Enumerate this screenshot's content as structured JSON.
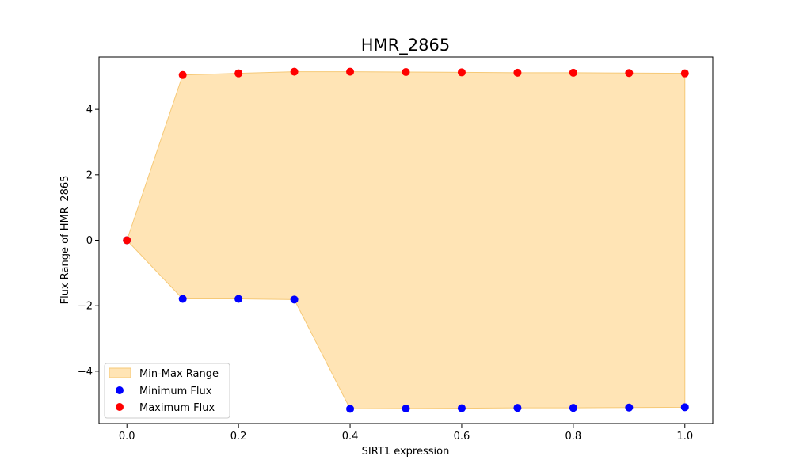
{
  "chart_data": {
    "type": "scatter",
    "title": "HMR_2865",
    "xlabel": "SIRT1 expression",
    "ylabel": "Flux Range of HMR_2865",
    "xlim": [
      -0.05,
      1.05
    ],
    "ylim": [
      -5.6,
      5.6
    ],
    "xticks": [
      0.0,
      0.2,
      0.4,
      0.6,
      0.8,
      1.0
    ],
    "xtick_labels": [
      "0.0",
      "0.2",
      "0.4",
      "0.6",
      "0.8",
      "1.0"
    ],
    "yticks": [
      -4,
      -2,
      0,
      2,
      4
    ],
    "ytick_labels": [
      "−4",
      "−2",
      "0",
      "2",
      "4"
    ],
    "x": [
      0.0,
      0.1,
      0.2,
      0.3,
      0.4,
      0.5,
      0.6,
      0.7,
      0.8,
      0.9,
      1.0
    ],
    "series": [
      {
        "name": "Minimum Flux",
        "color": "#0000ff",
        "values": [
          0.0,
          -1.79,
          -1.79,
          -1.81,
          -5.15,
          -5.14,
          -5.13,
          -5.12,
          -5.12,
          -5.11,
          -5.1
        ]
      },
      {
        "name": "Maximum Flux",
        "color": "#ff0000",
        "values": [
          0.0,
          5.05,
          5.1,
          5.15,
          5.15,
          5.14,
          5.13,
          5.12,
          5.12,
          5.11,
          5.1
        ]
      }
    ],
    "fill": {
      "name": "Min-Max Range",
      "color": "#ffe4b5",
      "edge_color": "#f6c977"
    },
    "legend_position": "lower-left",
    "grid": false
  }
}
